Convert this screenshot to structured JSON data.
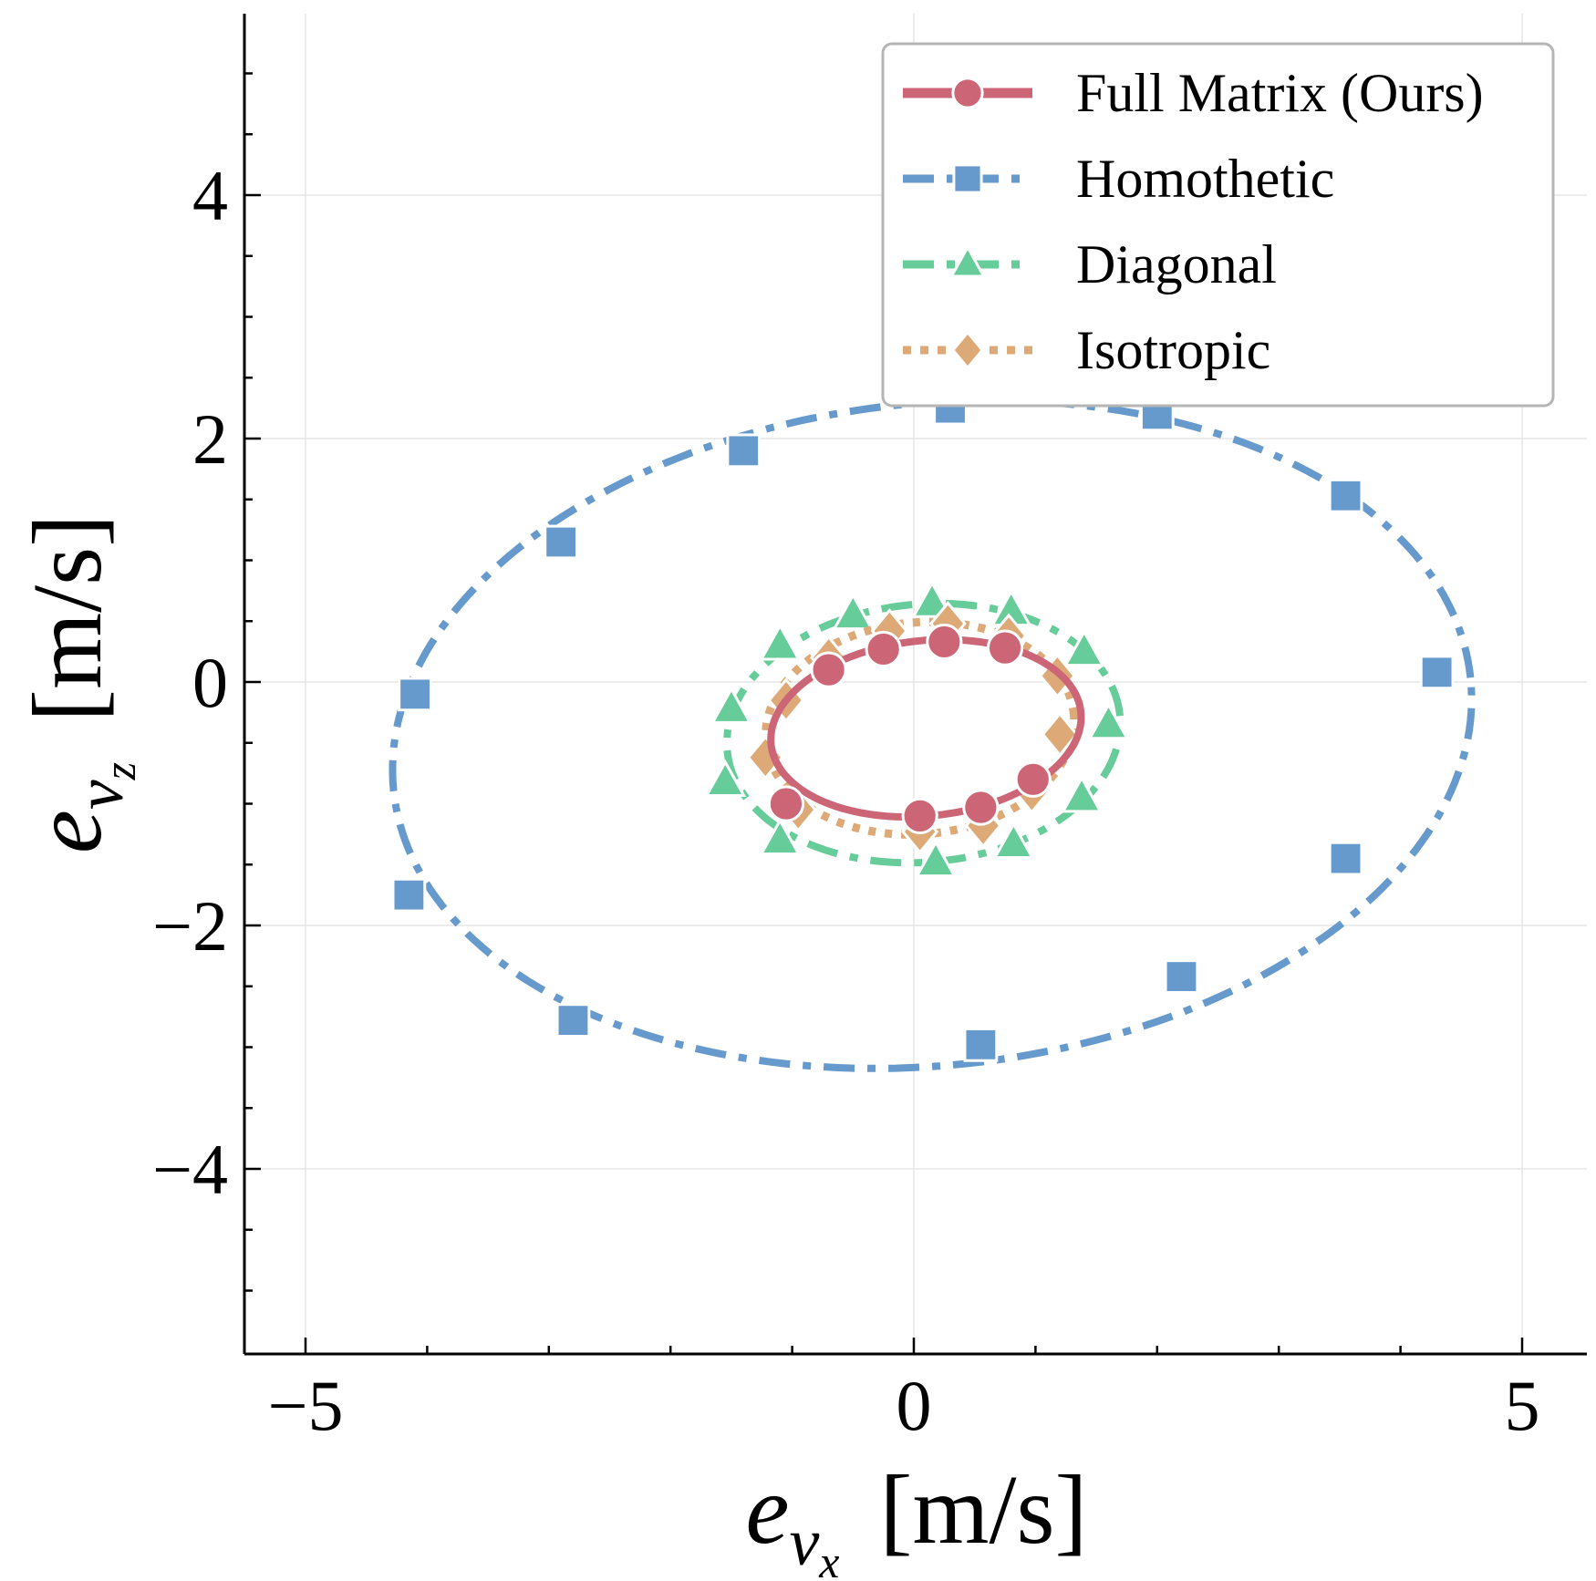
{
  "chart_data": {
    "type": "line",
    "title": "",
    "xlabel": {
      "symbol": "e",
      "subscript": "v",
      "subsubscript": "x",
      "units": "[m/s]"
    },
    "ylabel": {
      "symbol": "e",
      "subscript": "v",
      "subsubscript": "z",
      "units": "[m/s]"
    },
    "xlim": [
      -5.5,
      5.5
    ],
    "ylim": [
      -5.5,
      5.5
    ],
    "xticks": [
      {
        "value": -5,
        "label": "−5"
      },
      {
        "value": 0,
        "label": "0"
      },
      {
        "value": 5,
        "label": "5"
      }
    ],
    "yticks": [
      {
        "value": -4,
        "label": "−4"
      },
      {
        "value": -2,
        "label": "−2"
      },
      {
        "value": 0,
        "label": "0"
      },
      {
        "value": 2,
        "label": "2"
      },
      {
        "value": 4,
        "label": "4"
      }
    ],
    "grid": true,
    "legend": "top-right",
    "series": [
      {
        "name": "Full Matrix (Ours)",
        "color": "#cc6677",
        "dash": "solid",
        "marker": "circle",
        "center": [
          0.1,
          -0.38
        ],
        "radii": [
          1.28,
          0.72
        ],
        "rotation_deg": 6,
        "marker_points": [
          [
            -1.05,
            -1.0
          ],
          [
            -0.7,
            0.1
          ],
          [
            -0.25,
            0.27
          ],
          [
            0.25,
            0.33
          ],
          [
            0.75,
            0.28
          ],
          [
            0.05,
            -1.1
          ],
          [
            0.55,
            -1.03
          ],
          [
            0.98,
            -0.8
          ]
        ]
      },
      {
        "name": "Homothetic",
        "color": "#6699cc",
        "dash": "dashdot",
        "marker": "square",
        "center": [
          0.15,
          -0.43
        ],
        "radii": [
          4.45,
          2.72
        ],
        "rotation_deg": 6,
        "marker_points": [
          [
            -4.1,
            -0.1
          ],
          [
            -2.9,
            1.15
          ],
          [
            -1.4,
            1.9
          ],
          [
            0.3,
            2.25
          ],
          [
            2.0,
            2.2
          ],
          [
            3.55,
            1.53
          ],
          [
            4.3,
            0.08
          ],
          [
            3.55,
            -1.45
          ],
          [
            2.2,
            -2.42
          ],
          [
            0.55,
            -2.98
          ],
          [
            -2.8,
            -2.78
          ],
          [
            -4.15,
            -1.75
          ]
        ]
      },
      {
        "name": "Diagonal",
        "color": "#66cc99",
        "dash": "dashdot",
        "marker": "triangle",
        "center": [
          0.08,
          -0.42
        ],
        "radii": [
          1.62,
          1.06
        ],
        "rotation_deg": 5,
        "marker_points": [
          [
            -1.1,
            0.3
          ],
          [
            -0.5,
            0.55
          ],
          [
            0.15,
            0.65
          ],
          [
            0.8,
            0.58
          ],
          [
            1.4,
            0.25
          ],
          [
            1.6,
            -0.35
          ],
          [
            1.38,
            -0.95
          ],
          [
            0.82,
            -1.33
          ],
          [
            0.18,
            -1.48
          ],
          [
            -1.1,
            -1.3
          ],
          [
            -1.55,
            -0.82
          ],
          [
            -1.5,
            -0.22
          ]
        ]
      },
      {
        "name": "Isotropic",
        "color": "#ddaa77",
        "dash": "dotted",
        "marker": "diamond",
        "center": [
          0.05,
          -0.38
        ],
        "radii": [
          1.27,
          0.87
        ],
        "rotation_deg": 5,
        "marker_points": [
          [
            -1.05,
            -0.15
          ],
          [
            -0.7,
            0.2
          ],
          [
            -0.2,
            0.42
          ],
          [
            0.28,
            0.48
          ],
          [
            0.78,
            0.38
          ],
          [
            1.18,
            0.05
          ],
          [
            1.2,
            -0.43
          ],
          [
            0.97,
            -0.9
          ],
          [
            0.57,
            -1.18
          ],
          [
            0.05,
            -1.23
          ],
          [
            -0.95,
            -1.05
          ],
          [
            -1.22,
            -0.62
          ]
        ]
      }
    ]
  }
}
